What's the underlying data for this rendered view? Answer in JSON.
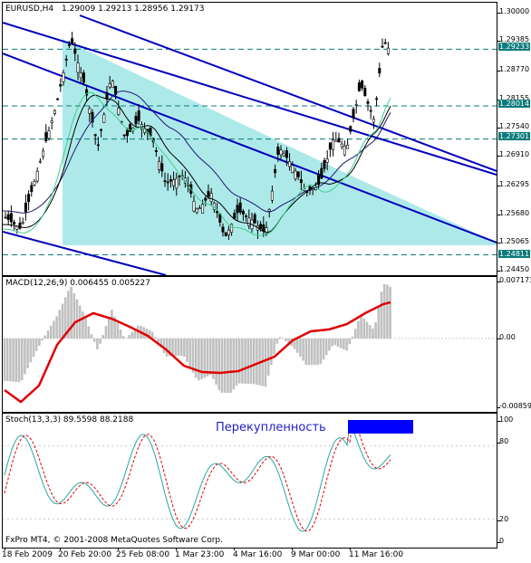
{
  "header": {
    "symbol_tf": "EURUSD,H4",
    "ohlc": "1.29009 1.29213 1.28956 1.29173"
  },
  "price_axis": {
    "ticks": [
      "1.30000",
      "1.29385",
      "1.28770",
      "1.28155",
      "1.27540",
      "1.26910",
      "1.26295",
      "1.25680",
      "1.25065",
      "1.24450"
    ],
    "boxed": [
      {
        "label": "1.29233",
        "value": 1.29233
      },
      {
        "label": "1.28014",
        "value": 1.28014
      },
      {
        "label": "1.27301",
        "value": 1.27301
      },
      {
        "label": "1.24811",
        "value": 1.24811
      }
    ]
  },
  "macd": {
    "label": "MACD(12,26,9) 0.006455 0.005227",
    "axis": [
      "0.007173",
      "0.00",
      "-0.00859"
    ]
  },
  "stoch": {
    "label": "Stoch(13,3,3) 89.5598 88.2188",
    "axis": [
      "100",
      "80",
      "20",
      "0"
    ],
    "annotation": "Перекупленность"
  },
  "x_axis": [
    "18 Feb 2009",
    "20 Feb 20:00",
    "25 Feb 08:00",
    "1 Mar 23:00",
    "4 Mar 16:00",
    "9 Mar 00:00",
    "11 Mar 16:00"
  ],
  "copyright": "FxPro MT4, © 2001-2008 MetaQuotes Software Corp.",
  "colors": {
    "bull_bear": "#000000",
    "channel": "#0000bb",
    "shade": "#aee9e9",
    "signal_line": "#e00000",
    "histogram": "#c0c0c0",
    "stoch_main": "#2aa7a7",
    "stoch_signal": "#e00000",
    "level_line": "#0b7a7a"
  }
}
